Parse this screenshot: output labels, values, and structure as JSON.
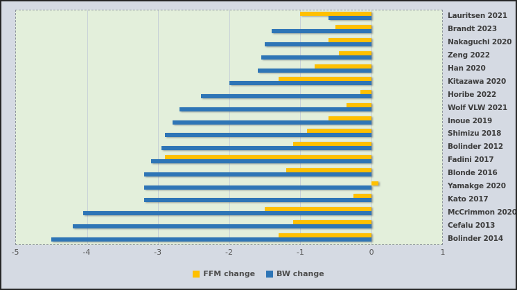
{
  "chart_data": {
    "type": "bar",
    "orientation": "horizontal-grouped",
    "title": "",
    "xlabel": "",
    "ylabel": "",
    "categories": [
      "Lauritsen 2021",
      "Brandt 2023",
      "Nakaguchi 2020",
      "Zeng 2022",
      "Han 2020",
      "Kitazawa 2020",
      "Horibe 2022",
      "Wolf VLW 2021",
      "Inoue 2019",
      "Shimizu 2018",
      "Bolinder 2012",
      "Fadini 2017",
      "Blonde 2016",
      "Yamakge 2020",
      "Kato 2017",
      "McCrimmon 2020",
      "Cefalu 2013",
      "Bolinder 2014"
    ],
    "series": [
      {
        "name": "FFM change",
        "color": "#FFC000",
        "values": [
          -1.0,
          -0.5,
          -0.6,
          -0.45,
          -0.8,
          -1.3,
          -0.15,
          -0.35,
          -0.6,
          -0.9,
          -1.1,
          -2.9,
          -1.2,
          0.1,
          -0.25,
          -1.5,
          -1.1,
          -1.3
        ]
      },
      {
        "name": "BW change",
        "color": "#2E75B6",
        "values": [
          -0.6,
          -1.4,
          -1.5,
          -1.55,
          -1.6,
          -2.0,
          -2.4,
          -2.7,
          -2.8,
          -2.9,
          -2.95,
          -3.1,
          -3.2,
          -3.2,
          -3.2,
          -4.05,
          -4.2,
          -4.5
        ]
      }
    ],
    "xlim": [
      -5,
      1
    ],
    "x_ticks": [
      -5,
      -4,
      -3,
      -2,
      -1,
      0,
      1
    ],
    "grid_values": [
      -4,
      -3,
      -2,
      -1,
      0
    ],
    "grid": true,
    "legend_position": "bottom"
  },
  "colors": {
    "plot_background": "#E3EFDB",
    "outer_background": "#D5DAE3",
    "gridline": "#C7D1D7",
    "plot_border": "#8D949C",
    "axis_text": "#595959",
    "category_text": "#3D3D3D"
  }
}
